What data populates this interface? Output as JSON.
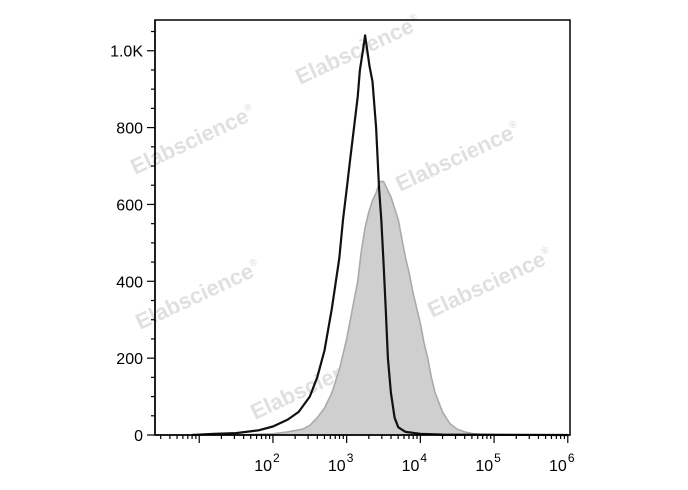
{
  "watermark": {
    "text": "Elabscience",
    "mark": "®"
  },
  "chart_data": {
    "type": "area",
    "title": "",
    "xlabel": "",
    "ylabel": "",
    "x_scale": "log",
    "xlim": [
      0.4,
      6.03
    ],
    "ylim": [
      0,
      1080
    ],
    "grid": false,
    "y_ticks": [
      {
        "value": 0,
        "label": "0"
      },
      {
        "value": 200,
        "label": "200"
      },
      {
        "value": 400,
        "label": "400"
      },
      {
        "value": 600,
        "label": "600"
      },
      {
        "value": 800,
        "label": "800"
      },
      {
        "value": 1000,
        "label": "1.0K"
      }
    ],
    "x_ticks": [
      {
        "value": 2,
        "base": "10",
        "exp": "2"
      },
      {
        "value": 3,
        "base": "10",
        "exp": "3"
      },
      {
        "value": 4,
        "base": "10",
        "exp": "4"
      },
      {
        "value": 5,
        "base": "10",
        "exp": "5"
      },
      {
        "value": 6,
        "base": "10",
        "exp": "6"
      }
    ],
    "series": [
      {
        "style": "filled",
        "fill_color": "#cfcfcf",
        "line_color": "#aaaaaa",
        "points": [
          [
            1.55,
            0
          ],
          [
            1.8,
            2
          ],
          [
            2.0,
            3
          ],
          [
            2.2,
            8
          ],
          [
            2.4,
            15
          ],
          [
            2.5,
            25
          ],
          [
            2.6,
            45
          ],
          [
            2.7,
            70
          ],
          [
            2.8,
            110
          ],
          [
            2.9,
            170
          ],
          [
            3.0,
            250
          ],
          [
            3.1,
            350
          ],
          [
            3.15,
            400
          ],
          [
            3.2,
            480
          ],
          [
            3.25,
            540
          ],
          [
            3.3,
            580
          ],
          [
            3.35,
            610
          ],
          [
            3.4,
            630
          ],
          [
            3.45,
            660
          ],
          [
            3.5,
            660
          ],
          [
            3.55,
            640
          ],
          [
            3.6,
            620
          ],
          [
            3.65,
            590
          ],
          [
            3.7,
            560
          ],
          [
            3.75,
            510
          ],
          [
            3.8,
            460
          ],
          [
            3.85,
            420
          ],
          [
            3.9,
            370
          ],
          [
            4.0,
            290
          ],
          [
            4.05,
            240
          ],
          [
            4.1,
            200
          ],
          [
            4.15,
            150
          ],
          [
            4.2,
            110
          ],
          [
            4.3,
            60
          ],
          [
            4.4,
            30
          ],
          [
            4.5,
            15
          ],
          [
            4.6,
            8
          ],
          [
            4.7,
            4
          ],
          [
            4.8,
            2
          ],
          [
            5.0,
            1
          ],
          [
            6.0,
            0
          ]
        ]
      },
      {
        "style": "line",
        "line_color": "#111111",
        "points": [
          [
            0.9,
            0
          ],
          [
            1.2,
            3
          ],
          [
            1.5,
            5
          ],
          [
            1.8,
            12
          ],
          [
            2.0,
            22
          ],
          [
            2.2,
            40
          ],
          [
            2.35,
            60
          ],
          [
            2.5,
            100
          ],
          [
            2.6,
            150
          ],
          [
            2.7,
            220
          ],
          [
            2.8,
            330
          ],
          [
            2.9,
            460
          ],
          [
            2.95,
            560
          ],
          [
            3.0,
            640
          ],
          [
            3.05,
            720
          ],
          [
            3.1,
            800
          ],
          [
            3.15,
            880
          ],
          [
            3.18,
            950
          ],
          [
            3.22,
            1000
          ],
          [
            3.25,
            1040
          ],
          [
            3.28,
            1000
          ],
          [
            3.31,
            960
          ],
          [
            3.35,
            920
          ],
          [
            3.4,
            800
          ],
          [
            3.44,
            640
          ],
          [
            3.47,
            560
          ],
          [
            3.5,
            450
          ],
          [
            3.53,
            330
          ],
          [
            3.56,
            200
          ],
          [
            3.6,
            110
          ],
          [
            3.65,
            45
          ],
          [
            3.7,
            20
          ],
          [
            3.8,
            8
          ],
          [
            4.0,
            3
          ],
          [
            4.3,
            1
          ],
          [
            6.0,
            0
          ]
        ]
      }
    ]
  }
}
